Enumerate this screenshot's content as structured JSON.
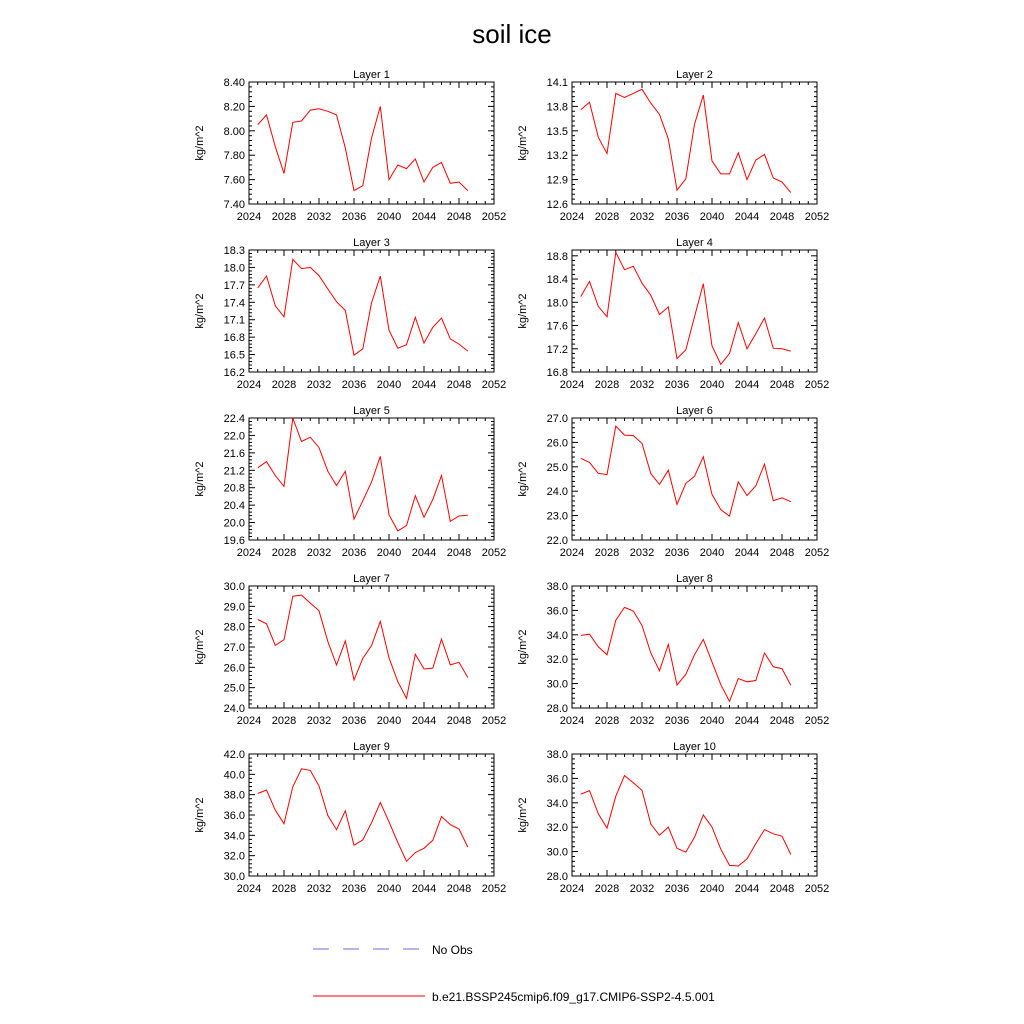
{
  "title": "soil ice",
  "legend": {
    "no_obs": "No Obs",
    "model": "b.e21.BSSP245cmip6.f09_g17.CMIP6-SSP2-4.5.001",
    "model_color": "#ff0000",
    "no_obs_color": "#6f6fcf"
  },
  "chart_data": [
    {
      "type": "line",
      "title": "Layer 1",
      "ylabel": "kg/m^2",
      "xlim": [
        2024,
        2052
      ],
      "ylim": [
        7.4,
        8.4
      ],
      "yticks": [
        "7.40",
        "7.60",
        "7.80",
        "8.00",
        "8.20",
        "8.40"
      ],
      "xticks": [
        "2024",
        "2028",
        "2032",
        "2036",
        "2040",
        "2044",
        "2048",
        "2052"
      ],
      "x": [
        2025,
        2026,
        2027,
        2028,
        2029,
        2030,
        2031,
        2032,
        2033,
        2034,
        2035,
        2036,
        2037,
        2038,
        2039,
        2040,
        2041,
        2042,
        2043,
        2044,
        2045,
        2046,
        2047,
        2048,
        2049
      ],
      "values": [
        8.05,
        8.13,
        7.87,
        7.65,
        8.07,
        8.08,
        8.17,
        8.18,
        8.16,
        8.13,
        7.86,
        7.51,
        7.55,
        7.94,
        8.2,
        7.6,
        7.72,
        7.69,
        7.77,
        7.58,
        7.7,
        7.74,
        7.57,
        7.58,
        7.51
      ]
    },
    {
      "type": "line",
      "title": "Layer 2",
      "ylabel": "kg/m^2",
      "xlim": [
        2024,
        2052
      ],
      "ylim": [
        12.6,
        14.1
      ],
      "yticks": [
        "12.6",
        "12.9",
        "13.2",
        "13.5",
        "13.8",
        "14.1"
      ],
      "xticks": [
        "2024",
        "2028",
        "2032",
        "2036",
        "2040",
        "2044",
        "2048",
        "2052"
      ],
      "x": [
        2025,
        2026,
        2027,
        2028,
        2029,
        2030,
        2031,
        2032,
        2033,
        2034,
        2035,
        2036,
        2037,
        2038,
        2039,
        2040,
        2041,
        2042,
        2043,
        2044,
        2045,
        2046,
        2047,
        2048,
        2049
      ],
      "values": [
        13.76,
        13.85,
        13.42,
        13.22,
        13.96,
        13.91,
        13.96,
        14.01,
        13.84,
        13.7,
        13.4,
        12.77,
        12.91,
        13.58,
        13.94,
        13.13,
        12.97,
        12.97,
        13.23,
        12.9,
        13.14,
        13.21,
        12.92,
        12.87,
        12.74
      ]
    },
    {
      "type": "line",
      "title": "Layer 3",
      "ylabel": "kg/m^2",
      "xlim": [
        2024,
        2052
      ],
      "ylim": [
        16.2,
        18.3
      ],
      "yticks": [
        "16.2",
        "16.5",
        "16.8",
        "17.1",
        "17.4",
        "17.7",
        "18.0",
        "18.3"
      ],
      "xticks": [
        "2024",
        "2028",
        "2032",
        "2036",
        "2040",
        "2044",
        "2048",
        "2052"
      ],
      "x": [
        2025,
        2026,
        2027,
        2028,
        2029,
        2030,
        2031,
        2032,
        2033,
        2034,
        2035,
        2036,
        2037,
        2038,
        2039,
        2040,
        2041,
        2042,
        2043,
        2044,
        2045,
        2046,
        2047,
        2048,
        2049
      ],
      "values": [
        17.65,
        17.85,
        17.34,
        17.15,
        18.14,
        17.98,
        18.0,
        17.86,
        17.63,
        17.41,
        17.26,
        16.49,
        16.6,
        17.39,
        17.85,
        16.92,
        16.61,
        16.67,
        17.14,
        16.7,
        16.97,
        17.13,
        16.77,
        16.68,
        16.56
      ]
    },
    {
      "type": "line",
      "title": "Layer 4",
      "ylabel": "kg/m^2",
      "xlim": [
        2024,
        2052
      ],
      "ylim": [
        16.8,
        18.9
      ],
      "yticks": [
        "16.8",
        "17.2",
        "17.6",
        "18.0",
        "18.4",
        "18.8"
      ],
      "xticks": [
        "2024",
        "2028",
        "2032",
        "2036",
        "2040",
        "2044",
        "2048",
        "2052"
      ],
      "x": [
        2025,
        2026,
        2027,
        2028,
        2029,
        2030,
        2031,
        2032,
        2033,
        2034,
        2035,
        2036,
        2037,
        2038,
        2039,
        2040,
        2041,
        2042,
        2043,
        2044,
        2045,
        2046,
        2047,
        2048,
        2049
      ],
      "values": [
        18.1,
        18.36,
        17.93,
        17.75,
        18.86,
        18.56,
        18.62,
        18.33,
        18.12,
        17.79,
        17.92,
        17.03,
        17.18,
        17.75,
        18.32,
        17.25,
        16.93,
        17.12,
        17.65,
        17.2,
        17.46,
        17.73,
        17.21,
        17.2,
        17.16
      ]
    },
    {
      "type": "line",
      "title": "Layer 5",
      "ylabel": "kg/m^2",
      "xlim": [
        2024,
        2052
      ],
      "ylim": [
        19.6,
        22.4
      ],
      "yticks": [
        "19.6",
        "20.0",
        "20.4",
        "20.8",
        "21.2",
        "21.6",
        "22.0",
        "22.4"
      ],
      "xticks": [
        "2024",
        "2028",
        "2032",
        "2036",
        "2040",
        "2044",
        "2048",
        "2052"
      ],
      "x": [
        2025,
        2026,
        2027,
        2028,
        2029,
        2030,
        2031,
        2032,
        2033,
        2034,
        2035,
        2036,
        2037,
        2038,
        2039,
        2040,
        2041,
        2042,
        2043,
        2044,
        2045,
        2046,
        2047,
        2048,
        2049
      ],
      "values": [
        21.26,
        21.4,
        21.08,
        20.83,
        22.4,
        21.86,
        21.96,
        21.72,
        21.18,
        20.85,
        21.18,
        20.08,
        20.5,
        20.93,
        21.52,
        20.18,
        19.81,
        19.93,
        20.62,
        20.12,
        20.53,
        21.08,
        20.03,
        20.15,
        20.17
      ]
    },
    {
      "type": "line",
      "title": "Layer 6",
      "ylabel": "kg/m^2",
      "xlim": [
        2024,
        2052
      ],
      "ylim": [
        22.0,
        27.0
      ],
      "yticks": [
        "22.0",
        "23.0",
        "24.0",
        "25.0",
        "26.0",
        "27.0"
      ],
      "xticks": [
        "2024",
        "2028",
        "2032",
        "2036",
        "2040",
        "2044",
        "2048",
        "2052"
      ],
      "x": [
        2025,
        2026,
        2027,
        2028,
        2029,
        2030,
        2031,
        2032,
        2033,
        2034,
        2035,
        2036,
        2037,
        2038,
        2039,
        2040,
        2041,
        2042,
        2043,
        2044,
        2045,
        2046,
        2047,
        2048,
        2049
      ],
      "values": [
        25.35,
        25.18,
        24.73,
        24.68,
        26.67,
        26.3,
        26.28,
        25.96,
        24.72,
        24.28,
        24.86,
        23.46,
        24.32,
        24.61,
        25.41,
        23.87,
        23.24,
        22.98,
        24.38,
        23.82,
        24.22,
        25.11,
        23.61,
        23.73,
        23.57
      ]
    },
    {
      "type": "line",
      "title": "Layer 7",
      "ylabel": "kg/m^2",
      "xlim": [
        2024,
        2052
      ],
      "ylim": [
        24.0,
        30.0
      ],
      "yticks": [
        "24.0",
        "25.0",
        "26.0",
        "27.0",
        "28.0",
        "29.0",
        "30.0"
      ],
      "xticks": [
        "2024",
        "2028",
        "2032",
        "2036",
        "2040",
        "2044",
        "2048",
        "2052"
      ],
      "x": [
        2025,
        2026,
        2027,
        2028,
        2029,
        2030,
        2031,
        2032,
        2033,
        2034,
        2035,
        2036,
        2037,
        2038,
        2039,
        2040,
        2041,
        2042,
        2043,
        2044,
        2045,
        2046,
        2047,
        2048,
        2049
      ],
      "values": [
        28.35,
        28.14,
        27.08,
        27.36,
        29.5,
        29.55,
        29.16,
        28.78,
        27.28,
        26.11,
        27.3,
        25.38,
        26.44,
        27.07,
        28.26,
        26.47,
        25.3,
        24.47,
        26.64,
        25.92,
        25.96,
        27.39,
        26.12,
        26.25,
        25.5
      ]
    },
    {
      "type": "line",
      "title": "Layer 8",
      "ylabel": "kg/m^2",
      "xlim": [
        2024,
        2052
      ],
      "ylim": [
        28.0,
        38.0
      ],
      "yticks": [
        "28.0",
        "30.0",
        "32.0",
        "34.0",
        "36.0",
        "38.0"
      ],
      "xticks": [
        "2024",
        "2028",
        "2032",
        "2036",
        "2040",
        "2044",
        "2048",
        "2052"
      ],
      "x": [
        2025,
        2026,
        2027,
        2028,
        2029,
        2030,
        2031,
        2032,
        2033,
        2034,
        2035,
        2036,
        2037,
        2038,
        2039,
        2040,
        2041,
        2042,
        2043,
        2044,
        2045,
        2046,
        2047,
        2048,
        2049
      ],
      "values": [
        33.95,
        34.05,
        33.02,
        32.36,
        35.2,
        36.25,
        35.95,
        34.76,
        32.51,
        31.05,
        33.21,
        29.88,
        30.76,
        32.36,
        33.62,
        31.76,
        29.92,
        28.54,
        30.42,
        30.15,
        30.25,
        32.51,
        31.38,
        31.22,
        29.85
      ]
    },
    {
      "type": "line",
      "title": "Layer 9",
      "ylabel": "kg/m^2",
      "xlim": [
        2024,
        2052
      ],
      "ylim": [
        30.0,
        42.0
      ],
      "yticks": [
        "30.0",
        "32.0",
        "34.0",
        "36.0",
        "38.0",
        "40.0",
        "42.0"
      ],
      "xticks": [
        "2024",
        "2028",
        "2032",
        "2036",
        "2040",
        "2044",
        "2048",
        "2052"
      ],
      "x": [
        2025,
        2026,
        2027,
        2028,
        2029,
        2030,
        2031,
        2032,
        2033,
        2034,
        2035,
        2036,
        2037,
        2038,
        2039,
        2040,
        2041,
        2042,
        2043,
        2044,
        2045,
        2046,
        2047,
        2048,
        2049
      ],
      "values": [
        38.11,
        38.46,
        36.47,
        35.14,
        38.77,
        40.54,
        40.39,
        38.86,
        35.96,
        34.55,
        36.41,
        33.03,
        33.55,
        35.23,
        37.23,
        35.33,
        33.3,
        31.45,
        32.3,
        32.72,
        33.51,
        35.85,
        35.06,
        34.62,
        32.84
      ]
    },
    {
      "type": "line",
      "title": "Layer 10",
      "ylabel": "kg/m^2",
      "xlim": [
        2024,
        2052
      ],
      "ylim": [
        28.0,
        38.0
      ],
      "yticks": [
        "28.0",
        "30.0",
        "32.0",
        "34.0",
        "36.0",
        "38.0"
      ],
      "xticks": [
        "2024",
        "2028",
        "2032",
        "2036",
        "2040",
        "2044",
        "2048",
        "2052"
      ],
      "x": [
        2025,
        2026,
        2027,
        2028,
        2029,
        2030,
        2031,
        2032,
        2033,
        2034,
        2035,
        2036,
        2037,
        2038,
        2039,
        2040,
        2041,
        2042,
        2043,
        2044,
        2045,
        2046,
        2047,
        2048,
        2049
      ],
      "values": [
        34.71,
        35.0,
        33.1,
        31.93,
        34.54,
        36.23,
        35.65,
        35.02,
        32.26,
        31.34,
        32.01,
        30.27,
        29.96,
        31.17,
        33.01,
        32.01,
        30.2,
        28.87,
        28.82,
        29.4,
        30.65,
        31.8,
        31.46,
        31.26,
        29.76
      ]
    }
  ]
}
